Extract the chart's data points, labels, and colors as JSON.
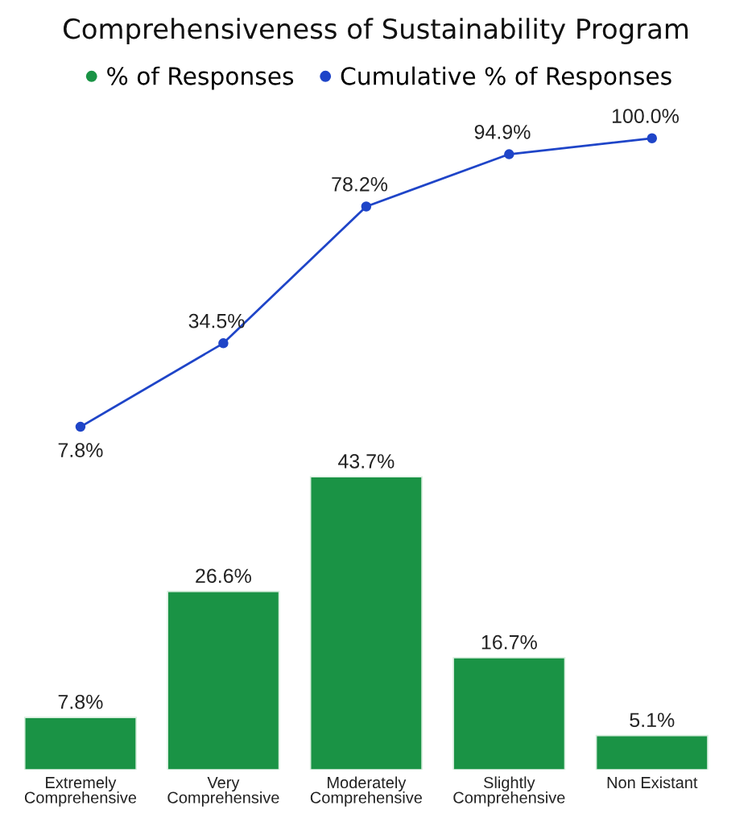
{
  "chart_data": [
    {
      "type": "line",
      "title": "Comprehensiveness of Sustainability Program",
      "categories": [
        null,
        null,
        null,
        null,
        null
      ],
      "series": [
        {
          "name": "Cumulative % of Responses",
          "color": "#1f45c8",
          "values": [
            7.8,
            34.5,
            78.2,
            94.9,
            100.0
          ],
          "value_labels": [
            "7.8%",
            "34.5%",
            "78.2%",
            "94.9%",
            "100.0%"
          ]
        }
      ],
      "tick_labels": false,
      "legend": "top",
      "marker": "circle",
      "line_style": "solid"
    },
    {
      "type": "bar",
      "categories": [
        "Extremely\nComprehensive",
        "Very\nComprehensive",
        "Moderately\nComprehensive",
        "Slightly\nComprehensive",
        "Non Existant"
      ],
      "series": [
        {
          "name": "% of Responses",
          "color": "#1a9345",
          "values": [
            7.8,
            26.6,
            43.7,
            16.7,
            5.1
          ],
          "value_labels": [
            "7.8%",
            "26.6%",
            "43.7%",
            "16.7%",
            "5.1%"
          ]
        }
      ],
      "tick_labels": "x",
      "legend": "top"
    }
  ]
}
